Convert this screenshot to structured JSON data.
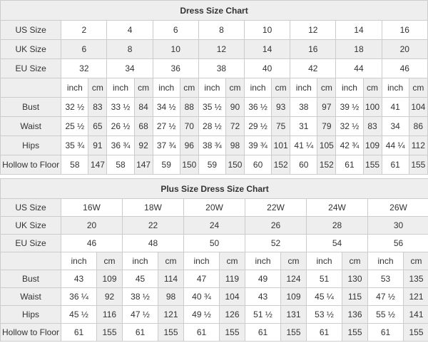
{
  "colors": {
    "border": "#cccccc",
    "shade_bg": "#eeeeee",
    "text": "#333333",
    "title_text": "#000000"
  },
  "chart_data": [
    {
      "type": "table",
      "title": "Dress Size Chart",
      "unit_labels": {
        "inch": "inch",
        "cm": "cm"
      },
      "size_rows": [
        {
          "label": "US Size",
          "shaded": false,
          "values": [
            "2",
            "4",
            "6",
            "8",
            "10",
            "12",
            "14",
            "16"
          ]
        },
        {
          "label": "UK Size",
          "shaded": true,
          "values": [
            "6",
            "8",
            "10",
            "12",
            "14",
            "16",
            "18",
            "20"
          ]
        },
        {
          "label": "EU Size",
          "shaded": false,
          "values": [
            "32",
            "34",
            "36",
            "38",
            "40",
            "42",
            "44",
            "46"
          ]
        }
      ],
      "measure_rows": [
        {
          "label": "Bust",
          "pairs": [
            [
              "32 ½",
              "83"
            ],
            [
              "33 ½",
              "84"
            ],
            [
              "34 ½",
              "88"
            ],
            [
              "35 ½",
              "90"
            ],
            [
              "36 ½",
              "93"
            ],
            [
              "38",
              "97"
            ],
            [
              "39 ½",
              "100"
            ],
            [
              "41",
              "104"
            ]
          ]
        },
        {
          "label": "Waist",
          "pairs": [
            [
              "25 ½",
              "65"
            ],
            [
              "26 ½",
              "68"
            ],
            [
              "27 ½",
              "70"
            ],
            [
              "28 ½",
              "72"
            ],
            [
              "29 ½",
              "75"
            ],
            [
              "31",
              "79"
            ],
            [
              "32 ½",
              "83"
            ],
            [
              "34",
              "86"
            ]
          ]
        },
        {
          "label": "Hips",
          "pairs": [
            [
              "35 ¾",
              "91"
            ],
            [
              "36 ¾",
              "92"
            ],
            [
              "37 ¾",
              "96"
            ],
            [
              "38 ¾",
              "98"
            ],
            [
              "39 ¾",
              "101"
            ],
            [
              "41 ¼",
              "105"
            ],
            [
              "42 ¾",
              "109"
            ],
            [
              "44 ¼",
              "112"
            ]
          ]
        },
        {
          "label": "Hollow to Floor",
          "pairs": [
            [
              "58",
              "147"
            ],
            [
              "58",
              "147"
            ],
            [
              "59",
              "150"
            ],
            [
              "59",
              "150"
            ],
            [
              "60",
              "152"
            ],
            [
              "60",
              "152"
            ],
            [
              "61",
              "155"
            ],
            [
              "61",
              "155"
            ]
          ]
        }
      ]
    },
    {
      "type": "table",
      "title": "Plus Size Dress Size Chart",
      "unit_labels": {
        "inch": "inch",
        "cm": "cm"
      },
      "size_rows": [
        {
          "label": "US Size",
          "shaded": false,
          "values": [
            "16W",
            "18W",
            "20W",
            "22W",
            "24W",
            "26W"
          ]
        },
        {
          "label": "UK Size",
          "shaded": true,
          "values": [
            "20",
            "22",
            "24",
            "26",
            "28",
            "30"
          ]
        },
        {
          "label": "EU Size",
          "shaded": false,
          "values": [
            "46",
            "48",
            "50",
            "52",
            "54",
            "56"
          ]
        }
      ],
      "measure_rows": [
        {
          "label": "Bust",
          "pairs": [
            [
              "43",
              "109"
            ],
            [
              "45",
              "114"
            ],
            [
              "47",
              "119"
            ],
            [
              "49",
              "124"
            ],
            [
              "51",
              "130"
            ],
            [
              "53",
              "135"
            ]
          ]
        },
        {
          "label": "Waist",
          "pairs": [
            [
              "36 ¼",
              "92"
            ],
            [
              "38 ½",
              "98"
            ],
            [
              "40 ¾",
              "104"
            ],
            [
              "43",
              "109"
            ],
            [
              "45 ¼",
              "115"
            ],
            [
              "47 ½",
              "121"
            ]
          ]
        },
        {
          "label": "Hips",
          "pairs": [
            [
              "45 ½",
              "116"
            ],
            [
              "47 ½",
              "121"
            ],
            [
              "49 ½",
              "126"
            ],
            [
              "51 ½",
              "131"
            ],
            [
              "53 ½",
              "136"
            ],
            [
              "55 ½",
              "141"
            ]
          ]
        },
        {
          "label": "Hollow to Floor",
          "pairs": [
            [
              "61",
              "155"
            ],
            [
              "61",
              "155"
            ],
            [
              "61",
              "155"
            ],
            [
              "61",
              "155"
            ],
            [
              "61",
              "155"
            ],
            [
              "61",
              "155"
            ]
          ]
        }
      ]
    }
  ]
}
